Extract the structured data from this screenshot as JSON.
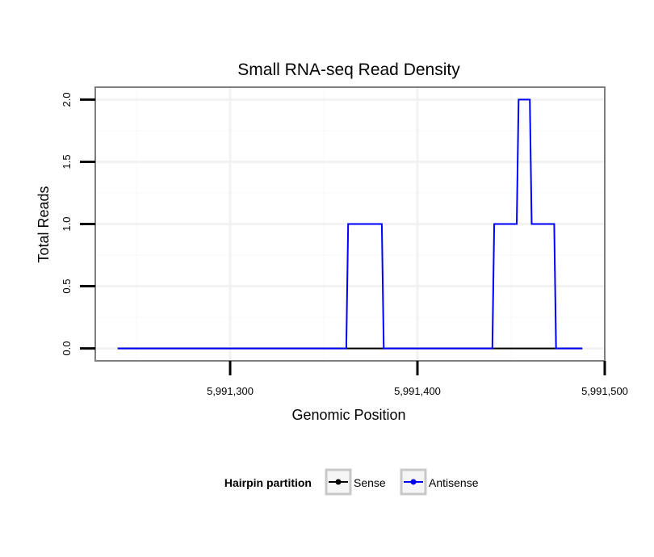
{
  "chart_data": {
    "type": "line",
    "title": "Small RNA-seq Read Density",
    "xlabel": "Genomic Position",
    "ylabel": "Total Reads",
    "xlim": [
      5991228,
      5991500
    ],
    "ylim": [
      -0.1,
      2.1
    ],
    "x_ticks": [
      5991300,
      5991400,
      5991500
    ],
    "x_tick_labels": [
      "5,991,300",
      "5,991,400",
      "5,991,500"
    ],
    "y_ticks": [
      0,
      0.5,
      1,
      1.5,
      2
    ],
    "y_tick_labels": [
      "0.0",
      "0.5",
      "1.0",
      "1.5",
      "2.0"
    ],
    "grid": true,
    "legend": {
      "title": "Hairpin partition",
      "position": "bottom",
      "entries": [
        {
          "name": "Sense",
          "color": "#000000"
        },
        {
          "name": "Antisense",
          "color": "#0000ff"
        }
      ]
    },
    "series": [
      {
        "name": "Sense",
        "color": "#000000",
        "x": [
          5991240,
          5991488
        ],
        "y": [
          0,
          0
        ]
      },
      {
        "name": "Antisense",
        "color": "#0000ff",
        "x": [
          5991240,
          5991362,
          5991363,
          5991381,
          5991382,
          5991440,
          5991441,
          5991453,
          5991454,
          5991460,
          5991461,
          5991473,
          5991474,
          5991488
        ],
        "y": [
          0,
          0,
          1,
          1,
          0,
          0,
          1,
          1,
          2,
          2,
          1,
          1,
          0,
          0
        ]
      }
    ]
  }
}
